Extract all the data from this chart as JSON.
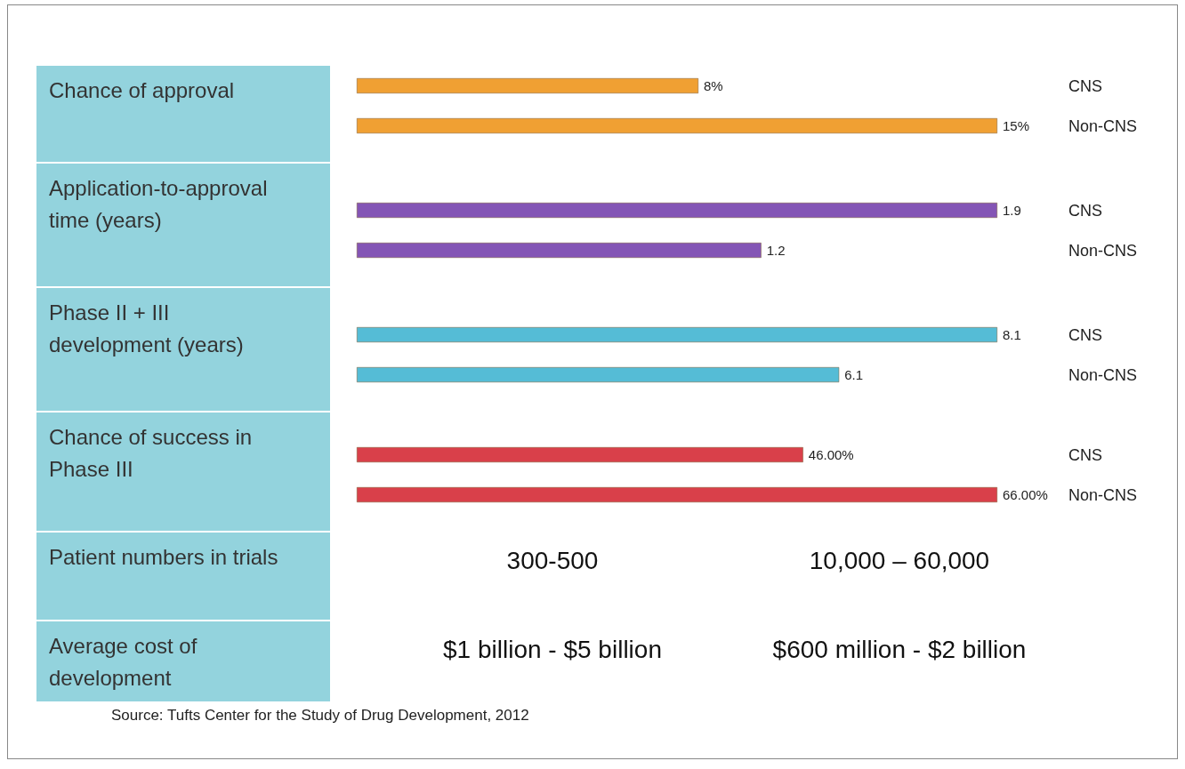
{
  "chart_data": [
    {
      "type": "bar",
      "orientation": "horizontal",
      "title": "Chance of approval",
      "categories": [
        "CNS",
        "Non-CNS"
      ],
      "values": [
        8,
        15
      ],
      "value_labels": [
        "8%",
        "15%"
      ],
      "colors": [
        "#f0a033",
        "#f0a033"
      ]
    },
    {
      "type": "bar",
      "orientation": "horizontal",
      "title": "Application-to-approval time (years)",
      "categories": [
        "CNS",
        "Non-CNS"
      ],
      "values": [
        1.9,
        1.2
      ],
      "data_labels": true,
      "colors": [
        "#8455b5",
        "#8455b5"
      ]
    },
    {
      "type": "bar",
      "orientation": "horizontal",
      "title": "Phase II + III development (years)",
      "categories": [
        "CNS",
        "Non-CNS"
      ],
      "values": [
        8.1,
        6.1
      ],
      "data_labels": true,
      "colors": [
        "#55bcd6",
        "#55bcd6"
      ]
    },
    {
      "type": "bar",
      "orientation": "horizontal",
      "title": "Chance of success in Phase III",
      "categories": [
        "CNS",
        "Non-CNS"
      ],
      "values": [
        46,
        66
      ],
      "value_labels": [
        "46.00%",
        "66.00%"
      ],
      "colors": [
        "#d9404a",
        "#d9404a"
      ]
    },
    {
      "type": "other",
      "title": "Patient numbers in trials",
      "annotations": [
        "300-500",
        "10,000 – 60,000"
      ]
    },
    {
      "type": "other",
      "title": "Average cost of development",
      "annotations": [
        "$1 billion - $5 billion",
        "$600 million - $2 billion",
        "Source: Tufts Center for the Study of Drug Development, 2012"
      ]
    }
  ]
}
